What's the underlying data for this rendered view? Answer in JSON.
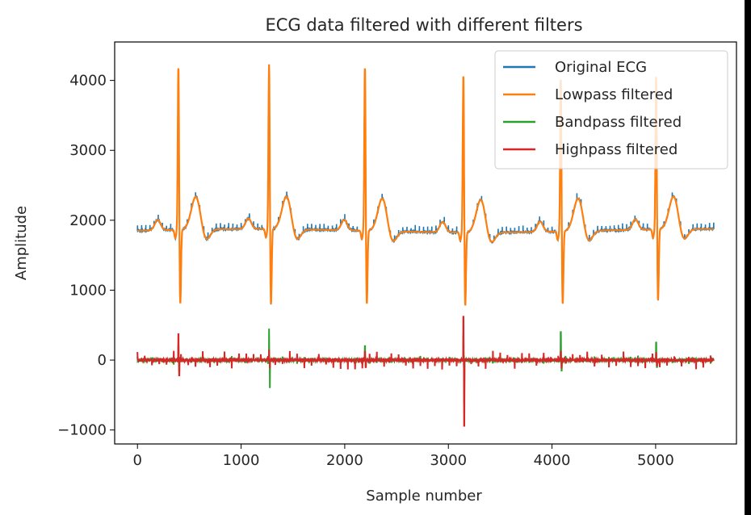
{
  "chart_data": {
    "type": "line",
    "title": "ECG data filtered with different filters",
    "xlabel": "Sample number",
    "ylabel": "Amplitude",
    "xlim": [
      -220,
      5780
    ],
    "ylim": [
      -1200,
      4550
    ],
    "xticks": [
      0,
      1000,
      2000,
      3000,
      4000,
      5000
    ],
    "yticks": [
      -1000,
      0,
      1000,
      2000,
      3000,
      4000
    ],
    "xtick_labels": [
      "0",
      "1000",
      "2000",
      "3000",
      "4000",
      "5000"
    ],
    "ytick_labels": [
      "−1000",
      "0",
      "1000",
      "2000",
      "3000",
      "4000"
    ],
    "grid": false,
    "legend_position": "upper right",
    "n_samples": 5560,
    "baseline": 1850,
    "r_peaks": [
      {
        "x": 395,
        "peak": 4220,
        "trough": 1020
      },
      {
        "x": 1270,
        "peak": 4240,
        "trough": 1000
      },
      {
        "x": 2195,
        "peak": 4230,
        "trough": 1030
      },
      {
        "x": 3145,
        "peak": 4140,
        "trough": 1030
      },
      {
        "x": 4085,
        "peak": 4080,
        "trough": 1040
      },
      {
        "x": 5005,
        "peak": 4080,
        "trough": 1060
      }
    ],
    "series": [
      {
        "name": "Original ECG",
        "color": "#1f77b4"
      },
      {
        "name": "Lowpass filtered",
        "color": "#ff7f0e"
      },
      {
        "name": "Bandpass filtered",
        "color": "#2ca02c"
      },
      {
        "name": "Highpass filtered",
        "color": "#d62728"
      }
    ],
    "bandpass_spikes": [
      {
        "x": 395,
        "hi": 200,
        "lo": -150
      },
      {
        "x": 1270,
        "hi": 450,
        "lo": -400
      },
      {
        "x": 2195,
        "hi": 200,
        "lo": -100
      },
      {
        "x": 3145,
        "hi": 350,
        "lo": -600
      },
      {
        "x": 4085,
        "hi": 400,
        "lo": -150
      },
      {
        "x": 5005,
        "hi": 250,
        "lo": -100
      }
    ],
    "highpass_spikes": [
      {
        "x": 395,
        "hi": 370,
        "lo": -220
      },
      {
        "x": 1270,
        "hi": 150,
        "lo": -120
      },
      {
        "x": 2195,
        "hi": 120,
        "lo": -100
      },
      {
        "x": 3145,
        "hi": 620,
        "lo": -940
      },
      {
        "x": 4085,
        "hi": 120,
        "lo": -110
      },
      {
        "x": 5005,
        "hi": 100,
        "lo": -80
      }
    ]
  }
}
